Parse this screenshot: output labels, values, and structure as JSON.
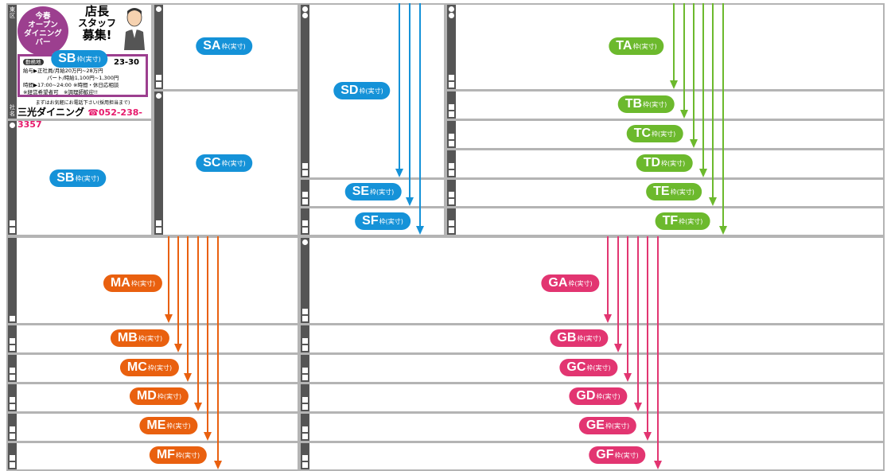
{
  "suffix": "枠(実寸)",
  "colors": {
    "blue": "#1592d8",
    "green": "#6cb92d",
    "orange": "#e9600f",
    "pink": "#e23571",
    "frame": "#b4b4b4",
    "spine": "#555555"
  },
  "spine_text": {
    "top": "東区",
    "bottom_1": "社",
    "bottom_2": "名"
  },
  "ad": {
    "circle": [
      "今春",
      "オープン",
      "ダイニング",
      "バー"
    ],
    "headline": [
      "店長",
      "スタッフ",
      "募集!"
    ],
    "location_tag": "勤務地",
    "address_tail": "23-30",
    "salary": "給与▶正社員/月給20万円~28万円",
    "part": "パート/時給1,100円~1,300円",
    "hours": "時間▶17:00~24:00 ※時間・休日応相談",
    "notes": "※経営希望者可　※調理師歓迎!!",
    "call": "まずはお気軽にお電話下さい(採用担当まで)",
    "company": "三光ダイニング",
    "tel": "☎052-238-3357"
  },
  "labels": {
    "SA": "SA",
    "SB": "SB",
    "SB2": "SB",
    "SC": "SC",
    "SD": "SD",
    "SE": "SE",
    "SF": "SF",
    "TA": "TA",
    "TB": "TB",
    "TC": "TC",
    "TD": "TD",
    "TE": "TE",
    "TF": "TF",
    "MA": "MA",
    "MB": "MB",
    "MC": "MC",
    "MD": "MD",
    "ME": "ME",
    "MF": "MF",
    "GA": "GA",
    "GB": "GB",
    "GC": "GC",
    "GD": "GD",
    "GE": "GE",
    "GF": "GF"
  }
}
